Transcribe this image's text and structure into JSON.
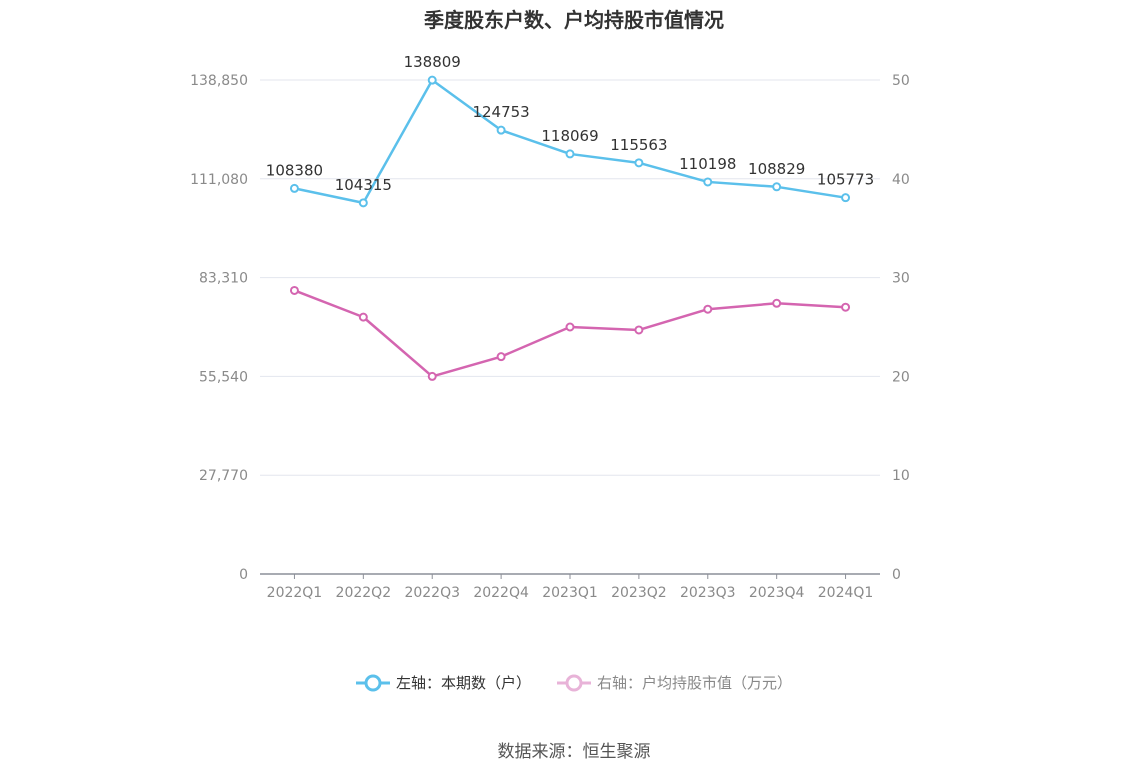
{
  "chart_data": {
    "type": "line",
    "title": "季度股东户数、户均持股市值情况",
    "categories": [
      "2022Q1",
      "2022Q2",
      "2022Q3",
      "2022Q4",
      "2023Q1",
      "2023Q2",
      "2023Q3",
      "2023Q4",
      "2024Q1"
    ],
    "series": [
      {
        "name": "左轴：本期数（户）",
        "axis": "left",
        "color": "#5bc0eb",
        "values": [
          108380,
          104315,
          138809,
          124753,
          118069,
          115563,
          110198,
          108829,
          105773
        ],
        "labels": [
          "108380",
          "104315",
          "138809",
          "124753",
          "118069",
          "115563",
          "110198",
          "108829",
          "105773"
        ]
      },
      {
        "name": "右轴：户均持股市值（万元）",
        "axis": "right",
        "color": "#d465b0",
        "values": [
          28.7,
          26.0,
          20.0,
          22.0,
          25.0,
          24.7,
          26.8,
          27.4,
          27.0
        ]
      }
    ],
    "left_axis": {
      "min": 0,
      "max": 138850,
      "ticks": [
        0,
        27770,
        55540,
        83310,
        111080,
        138850
      ],
      "tick_labels": [
        "0",
        "27,770",
        "55,540",
        "83,310",
        "111,080",
        "138,850"
      ]
    },
    "right_axis": {
      "min": 0,
      "max": 50,
      "ticks": [
        0,
        10,
        20,
        30,
        40,
        50
      ],
      "tick_labels": [
        "0",
        "10",
        "20",
        "30",
        "40",
        "50"
      ]
    },
    "grid": true,
    "legend_position": "bottom"
  },
  "legend": {
    "left_label": "左轴：本期数（户）",
    "right_label": "右轴：户均持股市值（万元）",
    "left_color": "#5bc0eb",
    "right_color": "#d465b0"
  },
  "source": "数据来源：恒生聚源"
}
